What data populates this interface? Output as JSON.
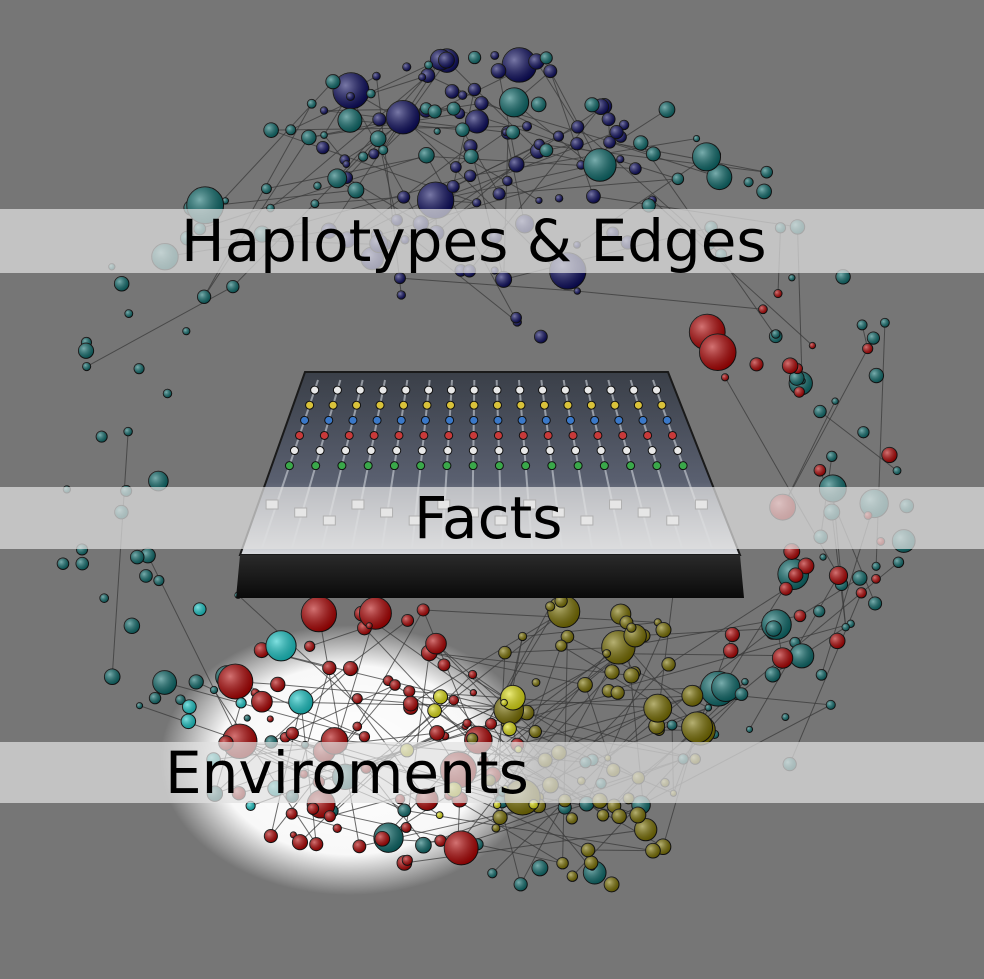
{
  "labels": {
    "top": "Haplotypes & Edges",
    "middle": "Facts",
    "bottom": "Enviroments"
  },
  "colors": {
    "background": "#767676",
    "band": "#e1e1e1",
    "navy": "#0a0a5e",
    "teal": "#0b6a6a",
    "red": "#b00000",
    "olive": "#7a7000",
    "yellow": "#dede10",
    "cyan": "#18c8c8",
    "edge": "#3a3a3a"
  },
  "icons": [
    "mixing-console-image",
    "network-graph-image"
  ]
}
